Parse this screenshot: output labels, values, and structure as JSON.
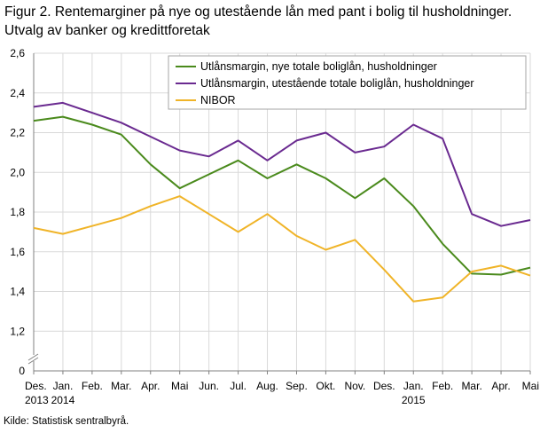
{
  "figure": {
    "title_line1": "Figur 2. Rentemarginer på nye og utestående lån med pant i bolig til husholdninger.",
    "title_line2": "Utvalg av banker og kredittforetak",
    "source": "Kilde: Statistisk sentralbyrå."
  },
  "chart_data": {
    "type": "line",
    "title": "Figur 2. Rentemarginer på nye og utestående lån med pant i bolig til husholdninger. Utvalg av banker og kredittforetak",
    "xlabel": "",
    "ylabel": "",
    "categories": [
      "Des.",
      "Jan.",
      "Feb.",
      "Mar.",
      "Apr.",
      "Mai",
      "Jun.",
      "Jul.",
      "Aug.",
      "Sep.",
      "Okt.",
      "Nov.",
      "Des.",
      "Jan.",
      "Feb.",
      "Mar.",
      "Apr.",
      "Mai"
    ],
    "year_labels": [
      {
        "index": 0,
        "label": "2013"
      },
      {
        "index": 1,
        "label": "2014"
      },
      {
        "index": 13,
        "label": "2015"
      }
    ],
    "y_ticks": [
      "0",
      "1,2",
      "1,4",
      "1,6",
      "1,8",
      "2,0",
      "2,2",
      "2,4",
      "2,6"
    ],
    "ylim": [
      1.0,
      2.6
    ],
    "axis_break": true,
    "grid": true,
    "legend_position": "top-right",
    "series": [
      {
        "name": "Utlånsmargin, nye totale boliglån, husholdninger",
        "color": "#4a8a1c",
        "values": [
          2.26,
          2.28,
          2.24,
          2.19,
          2.04,
          1.92,
          1.99,
          2.06,
          1.97,
          2.04,
          1.97,
          1.87,
          1.97,
          1.83,
          1.64,
          1.49,
          1.485,
          1.52
        ]
      },
      {
        "name": "Utlånsmargin, utestående totale boliglån, husholdninger",
        "color": "#6a2a90",
        "values": [
          2.33,
          2.35,
          2.3,
          2.25,
          2.18,
          2.11,
          2.08,
          2.16,
          2.06,
          2.16,
          2.2,
          2.1,
          2.13,
          2.24,
          2.17,
          1.79,
          1.73,
          1.76
        ]
      },
      {
        "name": "NIBOR",
        "color": "#f0b428",
        "values": [
          1.72,
          1.69,
          1.73,
          1.77,
          1.83,
          1.88,
          1.79,
          1.7,
          1.79,
          1.68,
          1.61,
          1.66,
          1.51,
          1.35,
          1.37,
          1.5,
          1.53,
          1.48
        ]
      }
    ]
  }
}
